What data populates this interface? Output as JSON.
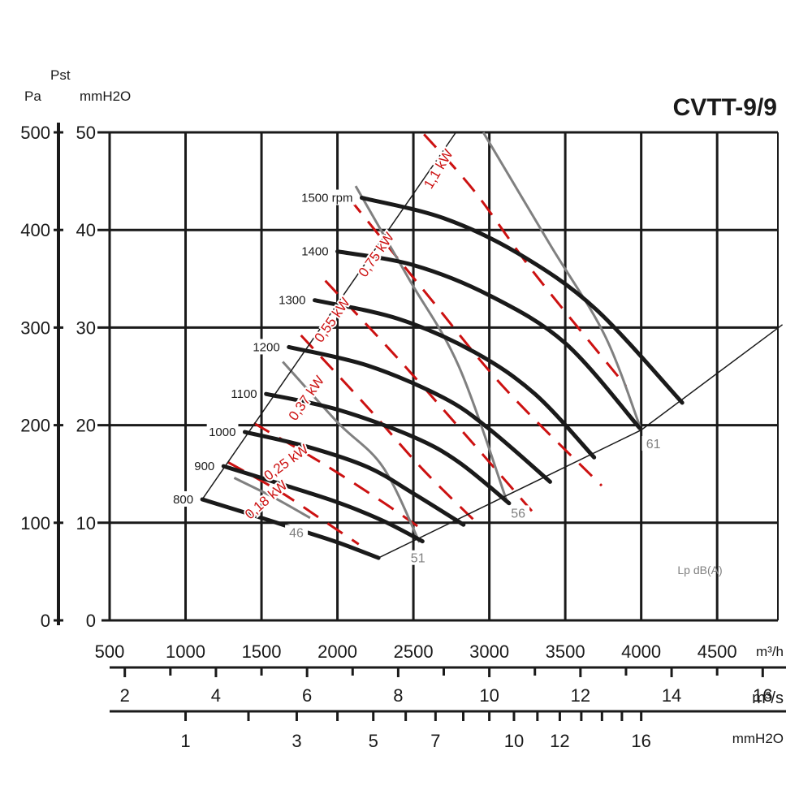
{
  "colors": {
    "rpm_curve": "#1a1a1a",
    "noise_curve": "#808080",
    "power_line": "#cc1111",
    "grid": "#1a1a1a",
    "envelope": "#1a1a1a"
  },
  "chart_data": {
    "type": "line",
    "title": "CVTT-9/9",
    "left_axis_units": {
      "pa": "Pa",
      "pst": "Pst",
      "mmh2o": "mmH2O"
    },
    "pa_ticks": [
      "0",
      "100",
      "200",
      "300",
      "400",
      "500"
    ],
    "mm_ticks": [
      "0",
      "10",
      "20",
      "30",
      "40",
      "50"
    ],
    "x_m3h": {
      "unit": "m³/h",
      "range": [
        500,
        4900
      ],
      "ticks": [
        "500",
        "1000",
        "1500",
        "2000",
        "2500",
        "3000",
        "3500",
        "4000",
        "4500"
      ]
    },
    "x_m3s": {
      "unit": "m³/s",
      "labels": [
        "2",
        "4",
        "6",
        "8",
        "10",
        "12",
        "14",
        "16"
      ]
    },
    "x_dyn": {
      "unit": "mmH2O",
      "labels": [
        "1",
        "3",
        "5",
        "7",
        "10",
        "12",
        "16"
      ]
    },
    "y_pa_range": [
      0,
      500
    ],
    "grid": true,
    "rpm_curves": [
      {
        "label": "800",
        "points": [
          [
            1110,
            124
          ],
          [
            1400,
            110
          ],
          [
            1700,
            95
          ],
          [
            2000,
            80
          ],
          [
            2270,
            64
          ]
        ]
      },
      {
        "label": "900",
        "points": [
          [
            1250,
            158
          ],
          [
            1600,
            141
          ],
          [
            2000,
            121
          ],
          [
            2300,
            102
          ],
          [
            2560,
            81
          ]
        ]
      },
      {
        "label": "1000",
        "points": [
          [
            1390,
            193
          ],
          [
            1800,
            178
          ],
          [
            2200,
            157
          ],
          [
            2500,
            130
          ],
          [
            2830,
            98
          ]
        ]
      },
      {
        "label": "1100",
        "points": [
          [
            1530,
            232
          ],
          [
            2000,
            216
          ],
          [
            2500,
            188
          ],
          [
            2800,
            162
          ],
          [
            3130,
            120
          ]
        ]
      },
      {
        "label": "1200",
        "points": [
          [
            1680,
            280
          ],
          [
            2200,
            261
          ],
          [
            2700,
            228
          ],
          [
            3000,
            196
          ],
          [
            3400,
            142
          ]
        ]
      },
      {
        "label": "1300",
        "points": [
          [
            1850,
            328
          ],
          [
            2400,
            309
          ],
          [
            2900,
            275
          ],
          [
            3300,
            232
          ],
          [
            3690,
            167
          ]
        ]
      },
      {
        "label": "1400",
        "points": [
          [
            2000,
            378
          ],
          [
            2500,
            364
          ],
          [
            3000,
            333
          ],
          [
            3500,
            284
          ],
          [
            3990,
            197
          ]
        ]
      },
      {
        "label": "1500 rpm",
        "points": [
          [
            2160,
            433
          ],
          [
            2700,
            412
          ],
          [
            3200,
            375
          ],
          [
            3700,
            319
          ],
          [
            4270,
            223
          ]
        ]
      }
    ],
    "power_lines": [
      {
        "label": "0,18 kW",
        "points": [
          [
            1280,
            162
          ],
          [
            1620,
            132
          ],
          [
            1900,
            103
          ],
          [
            2140,
            78
          ]
        ]
      },
      {
        "label": "0,25 kW",
        "points": [
          [
            1450,
            202
          ],
          [
            1900,
            161
          ],
          [
            2300,
            121
          ],
          [
            2550,
            94
          ]
        ]
      },
      {
        "label": "0,37 kW",
        "points": [
          [
            1760,
            292
          ],
          [
            2200,
            218
          ],
          [
            2560,
            155
          ],
          [
            2930,
            98
          ]
        ]
      },
      {
        "label": "0,55 kW",
        "points": [
          [
            1920,
            348
          ],
          [
            2400,
            268
          ],
          [
            2900,
            180
          ],
          [
            3280,
            112
          ]
        ]
      },
      {
        "label": "0,75 kW",
        "points": [
          [
            2080,
            432
          ],
          [
            2600,
            332
          ],
          [
            3100,
            238
          ],
          [
            3740,
            138
          ]
        ]
      },
      {
        "label": "1,1 kW",
        "points": [
          [
            2570,
            498
          ],
          [
            2900,
            440
          ],
          [
            3300,
            355
          ],
          [
            3900,
            240
          ]
        ]
      }
    ],
    "noise_curves": [
      {
        "label": "46",
        "points": [
          [
            1320,
            146
          ],
          [
            1580,
            126
          ],
          [
            1820,
            105
          ]
        ]
      },
      {
        "label": "51",
        "points": [
          [
            1640,
            265
          ],
          [
            2000,
            203
          ],
          [
            2300,
            157
          ],
          [
            2540,
            80
          ]
        ]
      },
      {
        "label": "56",
        "points": [
          [
            2120,
            445
          ],
          [
            2470,
            350
          ],
          [
            2800,
            260
          ],
          [
            3120,
            120
          ]
        ]
      },
      {
        "label": "61",
        "points": [
          [
            2960,
            500
          ],
          [
            3400,
            385
          ],
          [
            3760,
            292
          ],
          [
            4000,
            195
          ]
        ]
      }
    ],
    "envelope": {
      "left": [
        [
          1110,
          124
        ],
        [
          2780,
          500
        ]
      ],
      "right": [
        [
          2270,
          64
        ],
        [
          4000,
          195
        ],
        [
          4930,
          303
        ]
      ]
    },
    "noise_legend": "Lp dB(A)"
  }
}
